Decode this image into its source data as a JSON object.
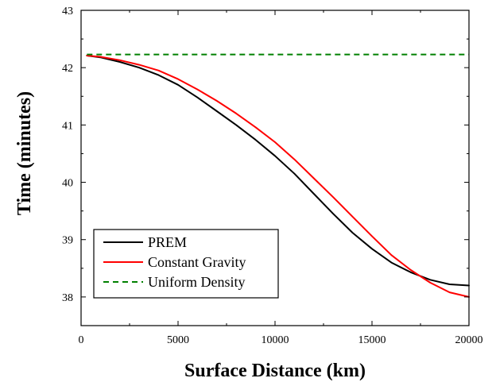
{
  "chart_data": {
    "type": "line",
    "xlabel": "Surface Distance (km)",
    "ylabel": "Time (minutes)",
    "xlim": [
      0,
      20000
    ],
    "ylim": [
      37.5,
      43
    ],
    "xticks": [
      0,
      5000,
      10000,
      15000,
      20000
    ],
    "yticks": [
      38,
      39,
      40,
      41,
      42,
      43
    ],
    "grid": false,
    "legend_position": "bottom-left",
    "series": [
      {
        "name": "PREM",
        "color": "#000000",
        "style": "solid",
        "x": [
          300,
          1000,
          2000,
          3000,
          4000,
          5000,
          6000,
          7000,
          8000,
          9000,
          10000,
          11000,
          12000,
          13000,
          14000,
          15000,
          16000,
          17000,
          18000,
          19000,
          20000
        ],
        "y": [
          42.21,
          42.18,
          42.1,
          42.0,
          41.87,
          41.7,
          41.48,
          41.24,
          41.0,
          40.74,
          40.46,
          40.15,
          39.8,
          39.45,
          39.12,
          38.84,
          38.6,
          38.43,
          38.3,
          38.22,
          38.2
        ]
      },
      {
        "name": "Constant Gravity",
        "color": "#ff0000",
        "style": "solid",
        "x": [
          300,
          1000,
          2000,
          3000,
          4000,
          5000,
          6000,
          7000,
          8000,
          9000,
          10000,
          11000,
          12000,
          13000,
          14000,
          15000,
          16000,
          17000,
          18000,
          19000,
          20000
        ],
        "y": [
          42.21,
          42.19,
          42.13,
          42.05,
          41.95,
          41.8,
          41.62,
          41.42,
          41.2,
          40.96,
          40.7,
          40.4,
          40.07,
          39.74,
          39.4,
          39.06,
          38.73,
          38.47,
          38.25,
          38.08,
          38.0
        ]
      },
      {
        "name": "Uniform Density",
        "color": "#008000",
        "style": "dashed",
        "x": [
          300,
          20000
        ],
        "y": [
          42.23,
          42.23
        ]
      }
    ]
  }
}
